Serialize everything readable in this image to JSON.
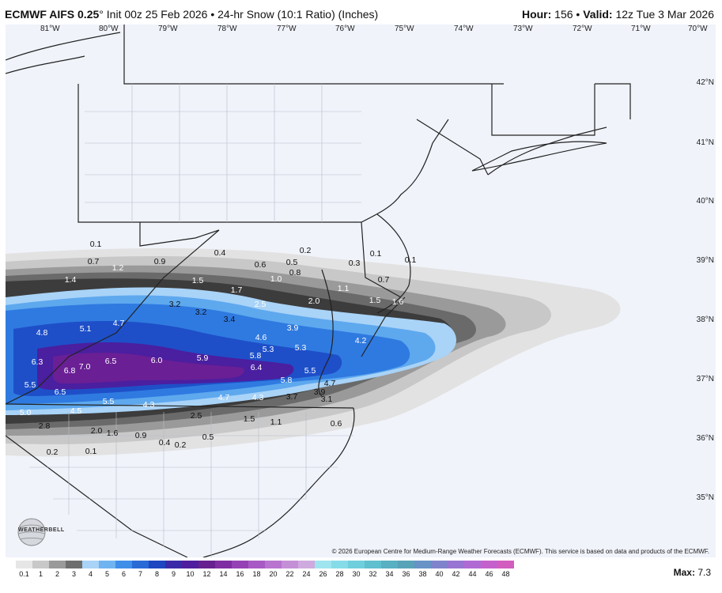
{
  "header": {
    "model": "ECMWF AIFS 0.25",
    "deg": "°",
    "init": "Init 00z 25 Feb 2026",
    "sep": "•",
    "product": "24-hr Snow (10:1 Ratio) (Inches)",
    "hour_label": "Hour:",
    "hour_value": "156",
    "valid_label": "Valid:",
    "valid_value": "12z Tue 3 Mar 2026"
  },
  "map": {
    "lon_labels": [
      "81°W",
      "80°W",
      "79°W",
      "78°W",
      "77°W",
      "76°W",
      "75°W",
      "74°W",
      "73°W",
      "72°W",
      "71°W",
      "70°W"
    ],
    "lat_labels": [
      "42°N",
      "41°N",
      "40°N",
      "39°N",
      "38°N",
      "37°N",
      "36°N",
      "35°N"
    ],
    "values": [
      "0.1",
      "0.7",
      "1.4",
      "1.2",
      "0.9",
      "0.4",
      "0.6",
      "0.5",
      "0.2",
      "0.8",
      "1.0",
      "0.3",
      "0.1",
      "0.7",
      "0.1",
      "1.5",
      "1.7",
      "2.5",
      "1.1",
      "2.0",
      "1.5",
      "1.6",
      "3.2",
      "3.2",
      "3.4",
      "4.8",
      "5.1",
      "4.7",
      "3.9",
      "4.2",
      "4.6",
      "5.3",
      "5.3",
      "5.8",
      "6.3",
      "6.8",
      "7.0",
      "6.5",
      "6.0",
      "5.9",
      "6.4",
      "5.5",
      "5.8",
      "5.5",
      "4.7",
      "3.9",
      "3.7",
      "3.1",
      "6.5",
      "5.5",
      "4.3",
      "4.7",
      "4.3",
      "2.5",
      "1.5",
      "1.1",
      "0.6",
      "5.0",
      "4.5",
      "2.8",
      "2.0",
      "1.6",
      "0.9",
      "0.4",
      "0.2",
      "0.5",
      "0.2",
      "0.1"
    ],
    "copyright": "© 2026 European Centre for Medium-Range Weather Forecasts (ECMWF). This service is based on data and products of the ECMWF.",
    "logo_text": "WEATHERBELL"
  },
  "scale": {
    "ticks": [
      "0.1",
      "1",
      "2",
      "3",
      "4",
      "5",
      "6",
      "7",
      "8",
      "9",
      "10",
      "12",
      "14",
      "16",
      "18",
      "20",
      "22",
      "24",
      "26",
      "28",
      "30",
      "32",
      "34",
      "36",
      "38",
      "40",
      "42",
      "44",
      "46",
      "48"
    ],
    "colors": [
      "#e6e6e6",
      "#c8c8c8",
      "#9a9a9a",
      "#6e6e6e",
      "#a9d3f7",
      "#6fb3f0",
      "#3f8ee8",
      "#2a6ad6",
      "#1e46c0",
      "#3b2aa8",
      "#4e1e9e",
      "#67208f",
      "#7e2da2",
      "#9541b5",
      "#a85ac4",
      "#b874cf",
      "#c48fd6",
      "#cfaade",
      "#9fe5f0",
      "#86dbe8",
      "#6fcfdc",
      "#5fc0cf",
      "#58b0c2",
      "#58a3b8",
      "#6793c6",
      "#7f83cc",
      "#9875d2",
      "#b06ad4",
      "#c460cc",
      "#d35cbf"
    ],
    "max_label": "Max:",
    "max_value": "7.3"
  },
  "colors": {
    "land_bg": "#f0f3fa",
    "band_1": "#e2e2e2",
    "band_2": "#c8c8c8",
    "band_3": "#9a9a9a",
    "band_4": "#6a6a6a",
    "band_5": "#3c3c3c",
    "blue_1": "#a9d3f7",
    "blue_2": "#5ea8ee",
    "blue_3": "#2f7ae0",
    "blue_4": "#1e4fc8",
    "purple_1": "#4a1fa0",
    "purple_2": "#6a1f95"
  }
}
